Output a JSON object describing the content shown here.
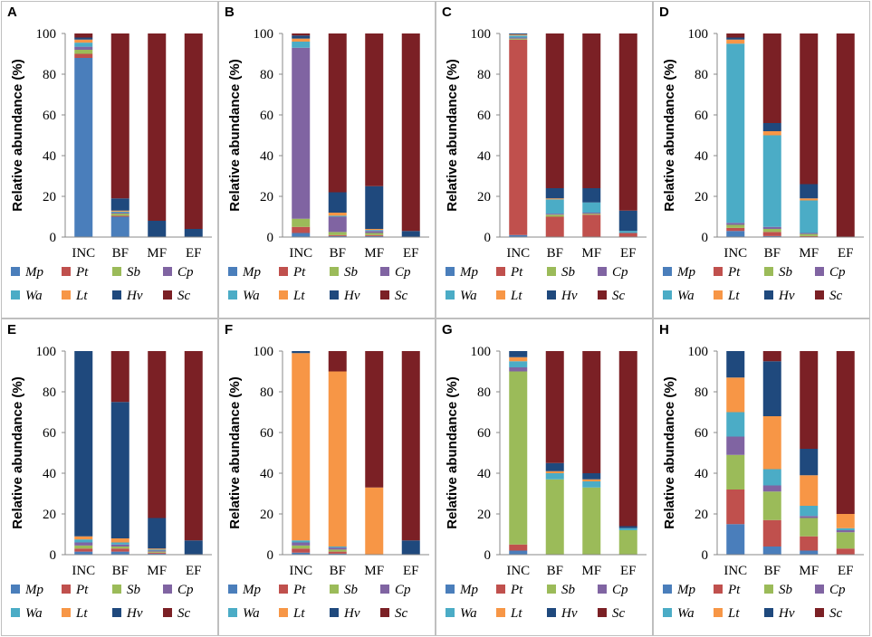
{
  "chart_data": [
    {
      "panel": "A",
      "type": "bar",
      "stacked": true,
      "title": "",
      "xlabel": "",
      "ylabel": "Relative abundance (%)",
      "ylim": [
        0,
        100
      ],
      "yticks": [
        0,
        20,
        40,
        60,
        80,
        100
      ],
      "categories": [
        "INC",
        "BF",
        "MF",
        "EF"
      ],
      "series": [
        {
          "name": "Mp",
          "color": "#4a7ebb",
          "values": [
            88,
            10,
            0,
            0
          ]
        },
        {
          "name": "Pt",
          "color": "#c0504d",
          "values": [
            2,
            0.5,
            0,
            0
          ]
        },
        {
          "name": "Sb",
          "color": "#9bbb59",
          "values": [
            2,
            1,
            0,
            0
          ]
        },
        {
          "name": "Cp",
          "color": "#8064a2",
          "values": [
            1.5,
            0.5,
            0,
            0
          ]
        },
        {
          "name": "Wa",
          "color": "#4bacc6",
          "values": [
            2,
            0.5,
            0,
            0
          ]
        },
        {
          "name": "Lt",
          "color": "#f79646",
          "values": [
            1.5,
            0.5,
            0,
            0
          ]
        },
        {
          "name": "Hv",
          "color": "#1f497d",
          "values": [
            1,
            6,
            8,
            4
          ]
        },
        {
          "name": "Sc",
          "color": "#7b2025",
          "values": [
            2,
            81,
            92,
            96
          ]
        }
      ],
      "legend": "bottom"
    },
    {
      "panel": "B",
      "type": "bar",
      "stacked": true,
      "title": "",
      "xlabel": "",
      "ylabel": "Relative abundance (%)",
      "ylim": [
        0,
        100
      ],
      "yticks": [
        0,
        20,
        40,
        60,
        80,
        100
      ],
      "categories": [
        "INC",
        "BF",
        "MF",
        "EF"
      ],
      "series": [
        {
          "name": "Mp",
          "color": "#4a7ebb",
          "values": [
            2,
            0.5,
            0.5,
            0
          ]
        },
        {
          "name": "Pt",
          "color": "#c0504d",
          "values": [
            3,
            0.5,
            0.5,
            0
          ]
        },
        {
          "name": "Sb",
          "color": "#9bbb59",
          "values": [
            4,
            1.5,
            1,
            0
          ]
        },
        {
          "name": "Cp",
          "color": "#8064a2",
          "values": [
            84,
            7.5,
            1,
            0
          ]
        },
        {
          "name": "Wa",
          "color": "#4bacc6",
          "values": [
            3,
            0.5,
            0.5,
            0
          ]
        },
        {
          "name": "Lt",
          "color": "#f79646",
          "values": [
            1.5,
            1.5,
            0.5,
            0
          ]
        },
        {
          "name": "Hv",
          "color": "#1f497d",
          "values": [
            1.5,
            10,
            21,
            3
          ]
        },
        {
          "name": "Sc",
          "color": "#7b2025",
          "values": [
            1,
            78,
            75,
            97
          ]
        }
      ],
      "legend": "bottom"
    },
    {
      "panel": "C",
      "type": "bar",
      "stacked": true,
      "title": "",
      "xlabel": "",
      "ylabel": "Relative abundance (%)",
      "ylim": [
        0,
        100
      ],
      "yticks": [
        0,
        20,
        40,
        60,
        80,
        100
      ],
      "categories": [
        "INC",
        "BF",
        "MF",
        "EF"
      ],
      "series": [
        {
          "name": "Mp",
          "color": "#4a7ebb",
          "values": [
            1,
            0,
            0,
            0
          ]
        },
        {
          "name": "Pt",
          "color": "#c0504d",
          "values": [
            96,
            10,
            11,
            2
          ]
        },
        {
          "name": "Sb",
          "color": "#9bbb59",
          "values": [
            0.5,
            1,
            0.5,
            0
          ]
        },
        {
          "name": "Cp",
          "color": "#8064a2",
          "values": [
            0.5,
            0.5,
            0.5,
            0
          ]
        },
        {
          "name": "Wa",
          "color": "#4bacc6",
          "values": [
            1,
            7,
            5,
            1
          ]
        },
        {
          "name": "Lt",
          "color": "#f79646",
          "values": [
            0.5,
            0.5,
            0,
            0
          ]
        },
        {
          "name": "Hv",
          "color": "#1f497d",
          "values": [
            0.5,
            5,
            7,
            10
          ]
        },
        {
          "name": "Sc",
          "color": "#7b2025",
          "values": [
            0,
            76,
            76,
            87
          ]
        }
      ],
      "legend": "bottom"
    },
    {
      "panel": "D",
      "type": "bar",
      "stacked": true,
      "title": "",
      "xlabel": "",
      "ylabel": "Relative abundance (%)",
      "ylim": [
        0,
        100
      ],
      "yticks": [
        0,
        20,
        40,
        60,
        80,
        100
      ],
      "categories": [
        "INC",
        "BF",
        "MF",
        "EF"
      ],
      "series": [
        {
          "name": "Mp",
          "color": "#4a7ebb",
          "values": [
            3,
            0.5,
            0,
            0
          ]
        },
        {
          "name": "Pt",
          "color": "#c0504d",
          "values": [
            1.5,
            2,
            0.5,
            0
          ]
        },
        {
          "name": "Sb",
          "color": "#9bbb59",
          "values": [
            1.5,
            1.5,
            1,
            0
          ]
        },
        {
          "name": "Cp",
          "color": "#8064a2",
          "values": [
            1,
            1,
            0.5,
            0
          ]
        },
        {
          "name": "Wa",
          "color": "#4bacc6",
          "values": [
            88,
            45,
            16,
            0
          ]
        },
        {
          "name": "Lt",
          "color": "#f79646",
          "values": [
            2,
            2,
            1,
            0
          ]
        },
        {
          "name": "Hv",
          "color": "#1f497d",
          "values": [
            1,
            4,
            7,
            0
          ]
        },
        {
          "name": "Sc",
          "color": "#7b2025",
          "values": [
            2,
            44,
            74,
            100
          ]
        }
      ],
      "legend": "bottom"
    },
    {
      "panel": "E",
      "type": "bar",
      "stacked": true,
      "title": "",
      "xlabel": "",
      "ylabel": "Relative abundance (%)",
      "ylim": [
        0,
        100
      ],
      "yticks": [
        0,
        20,
        40,
        60,
        80,
        100
      ],
      "categories": [
        "INC",
        "BF",
        "MF",
        "EF"
      ],
      "series": [
        {
          "name": "Mp",
          "color": "#4a7ebb",
          "values": [
            1.5,
            1.5,
            0.5,
            0
          ]
        },
        {
          "name": "Pt",
          "color": "#c0504d",
          "values": [
            1.5,
            1.5,
            0.5,
            0
          ]
        },
        {
          "name": "Sb",
          "color": "#9bbb59",
          "values": [
            1.5,
            1,
            0.5,
            0
          ]
        },
        {
          "name": "Cp",
          "color": "#8064a2",
          "values": [
            1.5,
            1,
            0.5,
            0
          ]
        },
        {
          "name": "Wa",
          "color": "#4bacc6",
          "values": [
            1.5,
            1,
            0.5,
            0
          ]
        },
        {
          "name": "Lt",
          "color": "#f79646",
          "values": [
            1.5,
            2,
            0.5,
            0
          ]
        },
        {
          "name": "Hv",
          "color": "#1f497d",
          "values": [
            91,
            67,
            15,
            7
          ]
        },
        {
          "name": "Sc",
          "color": "#7b2025",
          "values": [
            0,
            25,
            82,
            93
          ]
        }
      ],
      "legend": "bottom"
    },
    {
      "panel": "F",
      "type": "bar",
      "stacked": true,
      "title": "",
      "xlabel": "",
      "ylabel": "Relative abundance (%)",
      "ylim": [
        0,
        100
      ],
      "yticks": [
        0,
        20,
        40,
        60,
        80,
        100
      ],
      "categories": [
        "INC",
        "BF",
        "MF",
        "EF"
      ],
      "series": [
        {
          "name": "Mp",
          "color": "#4a7ebb",
          "values": [
            1,
            0.5,
            0,
            0
          ]
        },
        {
          "name": "Pt",
          "color": "#c0504d",
          "values": [
            2,
            1,
            0,
            0
          ]
        },
        {
          "name": "Sb",
          "color": "#9bbb59",
          "values": [
            1.5,
            1,
            0,
            0
          ]
        },
        {
          "name": "Cp",
          "color": "#8064a2",
          "values": [
            1.5,
            1,
            0,
            0
          ]
        },
        {
          "name": "Wa",
          "color": "#4bacc6",
          "values": [
            1,
            0.5,
            0,
            0
          ]
        },
        {
          "name": "Lt",
          "color": "#f79646",
          "values": [
            92,
            86,
            33,
            0
          ]
        },
        {
          "name": "Hv",
          "color": "#1f497d",
          "values": [
            1,
            0,
            0,
            7
          ]
        },
        {
          "name": "Sc",
          "color": "#7b2025",
          "values": [
            0,
            10,
            67,
            93
          ]
        }
      ],
      "legend": "bottom"
    },
    {
      "panel": "G",
      "type": "bar",
      "stacked": true,
      "title": "",
      "xlabel": "",
      "ylabel": "Relative abundance (%)",
      "ylim": [
        0,
        100
      ],
      "yticks": [
        0,
        20,
        40,
        60,
        80,
        100
      ],
      "categories": [
        "INC",
        "BF",
        "MF",
        "EF"
      ],
      "series": [
        {
          "name": "Mp",
          "color": "#4a7ebb",
          "values": [
            2,
            0,
            0,
            0
          ]
        },
        {
          "name": "Pt",
          "color": "#c0504d",
          "values": [
            3,
            0,
            0,
            0
          ]
        },
        {
          "name": "Sb",
          "color": "#9bbb59",
          "values": [
            85,
            37,
            33,
            12
          ]
        },
        {
          "name": "Cp",
          "color": "#8064a2",
          "values": [
            2,
            0,
            0,
            0
          ]
        },
        {
          "name": "Wa",
          "color": "#4bacc6",
          "values": [
            3,
            3,
            3,
            1
          ]
        },
        {
          "name": "Lt",
          "color": "#f79646",
          "values": [
            2,
            1,
            1,
            0
          ]
        },
        {
          "name": "Hv",
          "color": "#1f497d",
          "values": [
            3,
            4,
            3,
            1
          ]
        },
        {
          "name": "Sc",
          "color": "#7b2025",
          "values": [
            0,
            55,
            60,
            86
          ]
        }
      ],
      "legend": "bottom"
    },
    {
      "panel": "H",
      "type": "bar",
      "stacked": true,
      "title": "",
      "xlabel": "",
      "ylabel": "Relative abundance (%)",
      "ylim": [
        0,
        100
      ],
      "yticks": [
        0,
        20,
        40,
        60,
        80,
        100
      ],
      "categories": [
        "INC",
        "BF",
        "MF",
        "EF"
      ],
      "series": [
        {
          "name": "Mp",
          "color": "#4a7ebb",
          "values": [
            15,
            4,
            2,
            0
          ]
        },
        {
          "name": "Pt",
          "color": "#c0504d",
          "values": [
            17,
            13,
            7,
            3
          ]
        },
        {
          "name": "Sb",
          "color": "#9bbb59",
          "values": [
            17,
            14,
            9,
            8
          ]
        },
        {
          "name": "Cp",
          "color": "#8064a2",
          "values": [
            9,
            3,
            1,
            1
          ]
        },
        {
          "name": "Wa",
          "color": "#4bacc6",
          "values": [
            12,
            8,
            5,
            1
          ]
        },
        {
          "name": "Lt",
          "color": "#f79646",
          "values": [
            17,
            26,
            15,
            7
          ]
        },
        {
          "name": "Hv",
          "color": "#1f497d",
          "values": [
            13,
            27,
            13,
            0
          ]
        },
        {
          "name": "Sc",
          "color": "#7b2025",
          "values": [
            0,
            5,
            48,
            80
          ]
        }
      ],
      "legend": "bottom"
    }
  ]
}
